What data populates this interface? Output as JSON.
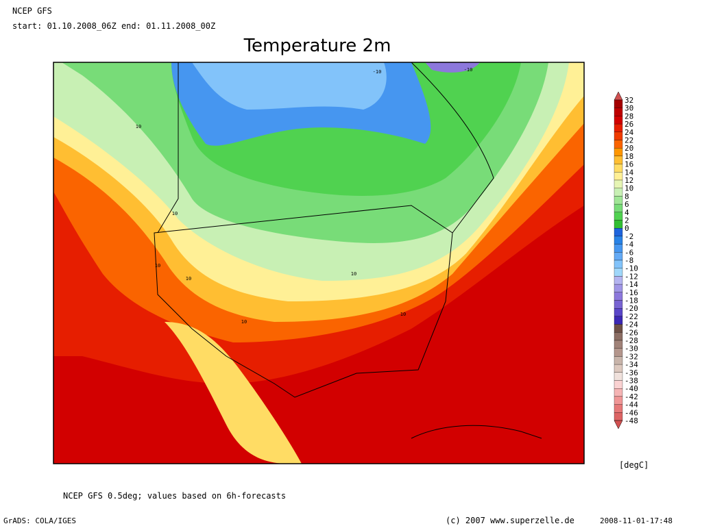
{
  "header": {
    "model": "NCEP GFS",
    "period": "start: 01.10.2008_06Z end: 01.11.2008_00Z"
  },
  "title": "Temperature 2m",
  "map": {
    "contour_labels": [
      "10",
      "10",
      "10",
      "10",
      "10",
      "10",
      "10",
      "-10",
      "-10"
    ]
  },
  "colorbar": {
    "levels": [
      32,
      30,
      28,
      26,
      24,
      22,
      20,
      18,
      16,
      14,
      12,
      10,
      8,
      6,
      4,
      2,
      0,
      -2,
      -4,
      -6,
      -8,
      -10,
      -12,
      -14,
      -16,
      -18,
      -20,
      -22,
      -24,
      -26,
      -28,
      -30,
      -32,
      -34,
      -36,
      -38,
      -40,
      -42,
      -44,
      -46,
      -48
    ],
    "colors": [
      "#d05050",
      "#a50000",
      "#be0000",
      "#d20000",
      "#e61e00",
      "#f03c00",
      "#fa6400",
      "#ff9600",
      "#ffbe32",
      "#ffdc64",
      "#fff096",
      "#e6f5b4",
      "#c8f0b4",
      "#a0e696",
      "#78dc78",
      "#50d250",
      "#32be32",
      "#1e64dc",
      "#2882e6",
      "#4696f0",
      "#64aaf5",
      "#82c3fa",
      "#a0d7fa",
      "#b4b4f0",
      "#a096e6",
      "#8c78dc",
      "#7864d2",
      "#5a46c8",
      "#3c28b4",
      "#6e5046",
      "#8c6e64",
      "#a08278",
      "#b4968c",
      "#c8b4aa",
      "#dcc8be",
      "#f0e1dc",
      "#fad2d2",
      "#f5b4b4",
      "#f09696",
      "#e67878",
      "#dc6464",
      "#d25050"
    ],
    "unit": "[degC]"
  },
  "footer": {
    "note": "NCEP GFS 0.5deg; values based on 6h-forecasts",
    "software": "GrADS: COLA/IGES",
    "copyright": "(c) 2007 www.superzelle.de",
    "timestamp": "2008-11-01-17:48"
  }
}
